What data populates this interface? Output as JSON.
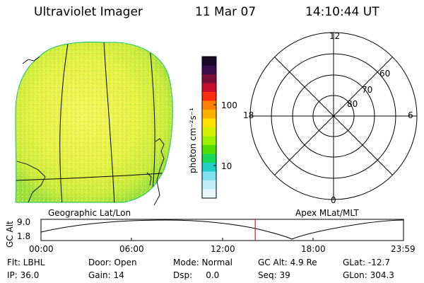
{
  "header": {
    "instrument": "Ultraviolet Imager",
    "date": "11 Mar 07",
    "time": "14:10:44 UT"
  },
  "colorbar": {
    "unit_label": "photon cm⁻²s⁻¹",
    "ticks": [
      {
        "label": "100",
        "value": 100
      },
      {
        "label": "10",
        "value": 10
      }
    ],
    "colors_top_to_bottom": [
      "#1a0a2a",
      "#3a0f4a",
      "#7a103a",
      "#c8102e",
      "#ff2d10",
      "#ff7f00",
      "#ffb000",
      "#ffe000",
      "#d4f000",
      "#9cf000",
      "#4fe000",
      "#18d85a",
      "#20d0c8",
      "#7fe0f0",
      "#bfeff8",
      "#e8f6fb"
    ]
  },
  "labels": {
    "geo": "Geographic Lat/Lon",
    "apex": "Apex MLat/MLT"
  },
  "polar": {
    "mlt_labels": [
      {
        "label": "12",
        "pos": "top"
      },
      {
        "label": "18",
        "pos": "left"
      },
      {
        "label": "6",
        "pos": "right"
      },
      {
        "label": "0",
        "pos": "bottom"
      }
    ],
    "lat_labels": [
      {
        "label": "60",
        "lat": 60
      },
      {
        "label": "70",
        "lat": 70
      },
      {
        "label": "80",
        "lat": 80
      }
    ]
  },
  "altitude_plot": {
    "ylabel": "GC Alt",
    "y_ticks": [
      "9.0",
      "1.8"
    ],
    "x_ticks": [
      "00:00",
      "06:00",
      "12:00",
      "18:00",
      "23:59"
    ],
    "current_time_fraction": 0.591,
    "marker_color": "#c02020"
  },
  "status": {
    "flt": "Flt: LBHL",
    "door": "Door: Open",
    "mode": "Mode: Normal",
    "gc_alt": "GC Alt: 4.9 Re",
    "glat": "GLat: -12.7",
    "ip": "IP: 36.0",
    "gain": "Gain: 14",
    "dsp": "Dsp:     0.0",
    "seq": "Seq: 39",
    "glon": "GLon: 304.3"
  }
}
